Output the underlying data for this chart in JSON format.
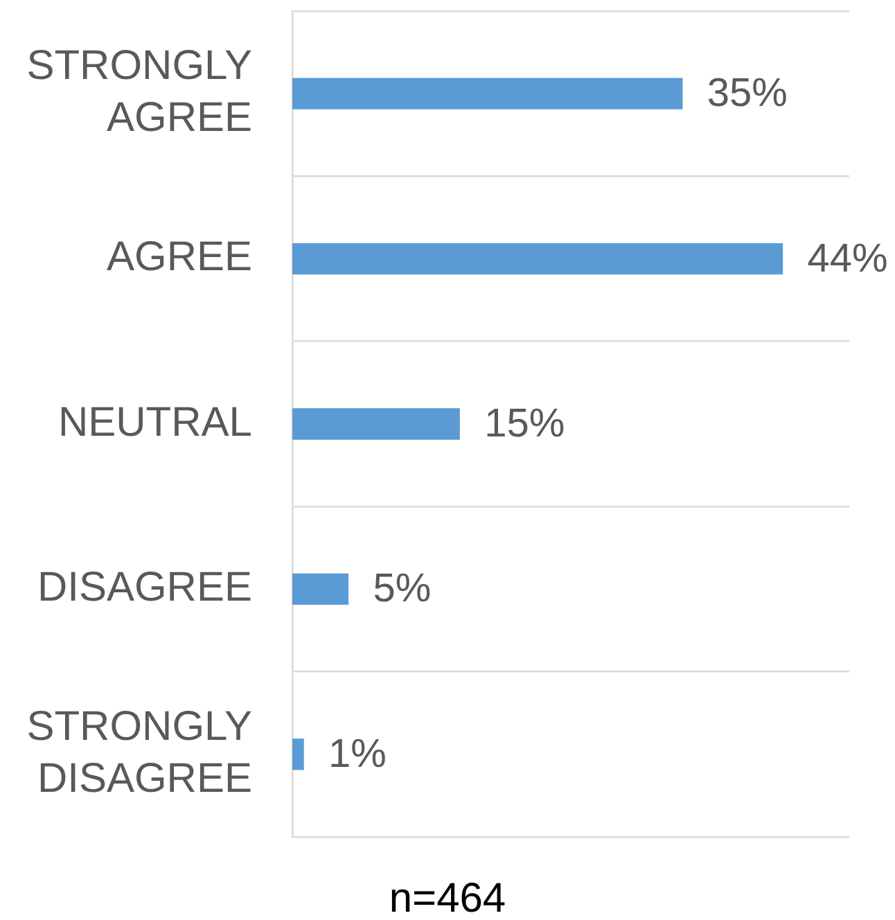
{
  "chart_data": {
    "type": "bar",
    "orientation": "horizontal",
    "categories": [
      "STRONGLY AGREE",
      "AGREE",
      "NEUTRAL",
      "DISAGREE",
      "STRONGLY DISAGREE"
    ],
    "values": [
      35,
      44,
      15,
      5,
      1
    ],
    "color": "#5b9bd5",
    "value_labels": [
      "35%",
      "44%",
      "15%",
      "5%",
      "1%"
    ],
    "annotations": [
      "n=464"
    ],
    "grid": "y",
    "tick_labels": "y"
  }
}
